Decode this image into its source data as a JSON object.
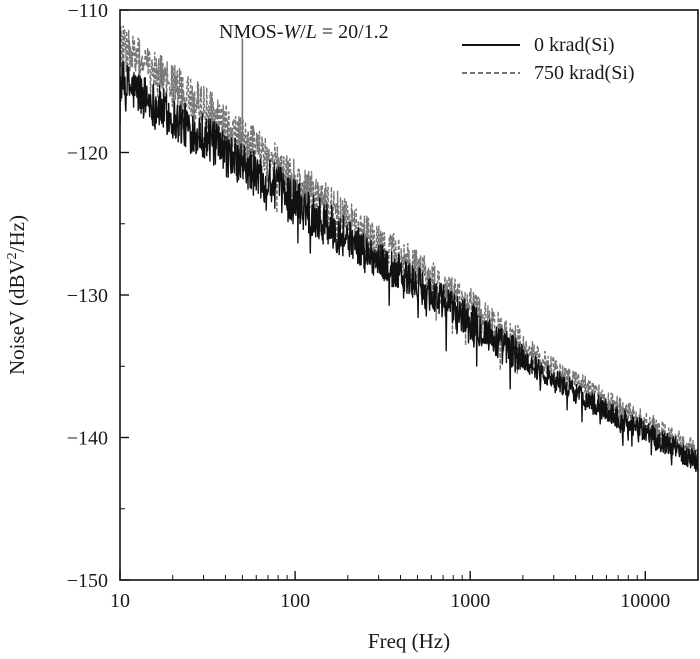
{
  "chart_data": {
    "type": "line",
    "title": "",
    "annotation": {
      "prefix": "NMOS-",
      "W": "W",
      "slash": "/",
      "L": "L",
      "suffix": " = 20/1.2"
    },
    "xlabel": "Freq (Hz)",
    "ylabel": {
      "main": "NoiseV (dBV",
      "sup": "2",
      "tail": "/Hz)"
    },
    "x_scale": "log",
    "xlim": [
      10,
      20000
    ],
    "ylim": [
      -150,
      -110
    ],
    "x_ticks": [
      10,
      100,
      1000,
      10000
    ],
    "x_tick_labels": [
      "10",
      "100",
      "1000",
      "10000"
    ],
    "y_ticks": [
      -110,
      -120,
      -130,
      -140,
      -150
    ],
    "y_tick_labels": [
      "−110",
      "−120",
      "−130",
      "−140",
      "−150"
    ],
    "grid": false,
    "legend_position": "top-right",
    "series": [
      {
        "name": "0 krad(Si)",
        "color": "#111111",
        "style": "solid",
        "x": [
          10,
          12,
          15,
          20,
          25,
          30,
          40,
          50,
          60,
          70,
          80,
          100,
          150,
          200,
          300,
          400,
          500,
          700,
          1000,
          1500,
          2000,
          3000,
          5000,
          7000,
          10000,
          15000,
          20000
        ],
        "y": [
          -115.1,
          -115.6,
          -116.4,
          -117.6,
          -118.3,
          -118.8,
          -120.1,
          -120.9,
          -121.6,
          -122.0,
          -122.5,
          -123.4,
          -125.0,
          -126.0,
          -127.6,
          -128.5,
          -129.3,
          -130.5,
          -131.8,
          -133.5,
          -134.5,
          -135.9,
          -137.6,
          -138.6,
          -139.6,
          -140.8,
          -141.7
        ]
      },
      {
        "name": "750 krad(Si)",
        "color": "#777777",
        "style": "dashed",
        "x": [
          10,
          12,
          15,
          20,
          25,
          30,
          40,
          50,
          60,
          70,
          80,
          100,
          150,
          200,
          300,
          400,
          500,
          700,
          1000,
          1500,
          2000,
          3000,
          5000,
          7000,
          10000,
          15000,
          20000
        ],
        "y": [
          -112.5,
          -113.2,
          -114.2,
          -115.3,
          -116.2,
          -116.8,
          -118.2,
          -119.1,
          -119.9,
          -120.5,
          -121.0,
          -122.0,
          -123.6,
          -124.7,
          -126.3,
          -127.3,
          -128.2,
          -129.5,
          -130.7,
          -132.6,
          -133.6,
          -135.1,
          -136.8,
          -137.9,
          -138.9,
          -140.2,
          -141.0
        ]
      }
    ],
    "spike": {
      "x": 50,
      "y": -112.0
    }
  }
}
